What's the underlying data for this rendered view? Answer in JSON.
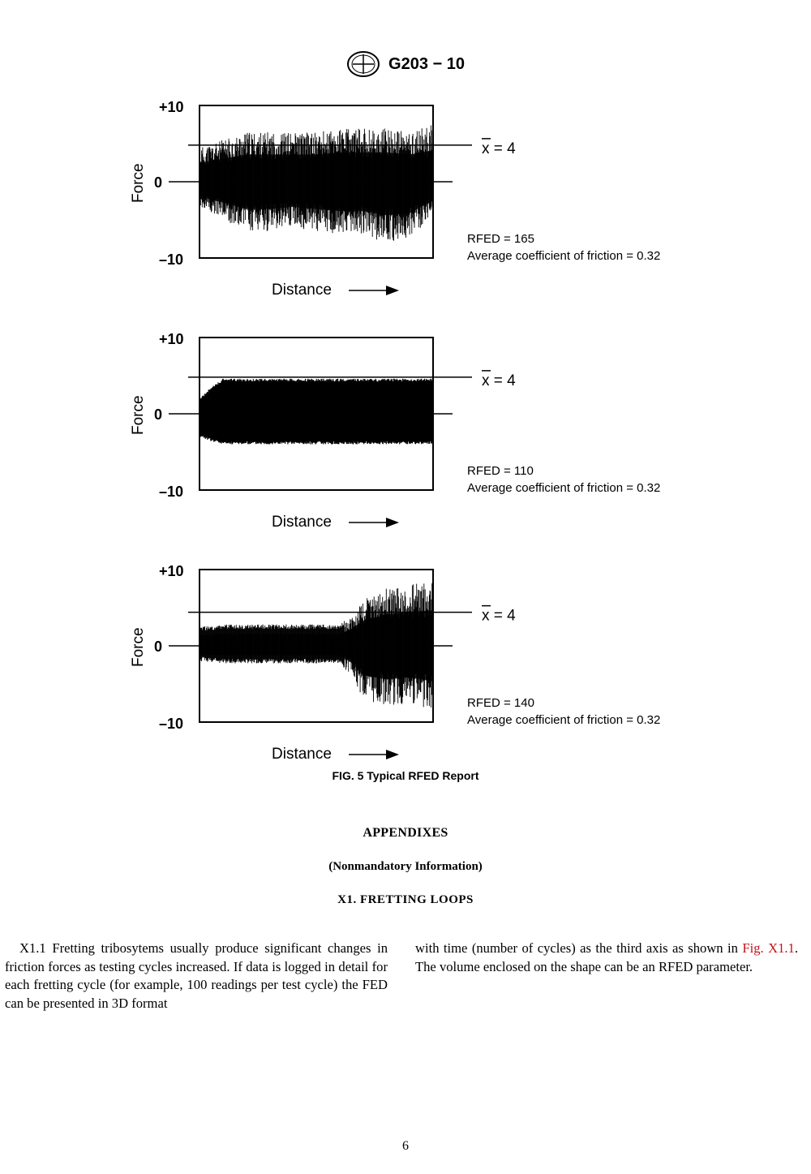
{
  "header": {
    "logo_text": "ASTM",
    "designation": "G203 − 10"
  },
  "figure": {
    "caption": "FIG. 5 Typical RFED Report"
  },
  "chart_data": [
    {
      "type": "area",
      "ylabel": "Force",
      "xlabel": "Distance",
      "ylim": [
        -10,
        10
      ],
      "yticks": [
        "+10",
        "0",
        "–10"
      ],
      "mean_label": "x = 4",
      "mean_value": 4.8,
      "rfed_label": "RFED = 165",
      "friction_label": "Average coefficient of friction = 0.32",
      "envelope": {
        "x": [
          0,
          0.1,
          0.2,
          0.3,
          0.4,
          0.5,
          0.6,
          0.7,
          0.8,
          0.9,
          1.0
        ],
        "upper": [
          4.5,
          5.5,
          6.5,
          6.5,
          6.5,
          6.5,
          7.0,
          7.0,
          7.0,
          6.5,
          7.5
        ],
        "lower": [
          -3.5,
          -5.0,
          -6.5,
          -6.5,
          -6.0,
          -6.5,
          -7.0,
          -7.0,
          -8.0,
          -7.5,
          -4.5
        ]
      },
      "style": "spiky"
    },
    {
      "type": "area",
      "ylabel": "Force",
      "xlabel": "Distance",
      "ylim": [
        -10,
        10
      ],
      "yticks": [
        "+10",
        "0",
        "–10"
      ],
      "mean_label": "x = 4",
      "mean_value": 4.8,
      "rfed_label": "RFED = 110",
      "friction_label": "Average coefficient of friction = 0.32",
      "envelope": {
        "x": [
          0,
          0.05,
          0.1,
          0.2,
          0.4,
          0.6,
          0.8,
          1.0
        ],
        "upper": [
          2.0,
          3.5,
          4.6,
          4.6,
          4.6,
          4.6,
          4.6,
          4.6
        ],
        "lower": [
          -3.0,
          -3.6,
          -4.0,
          -4.0,
          -4.0,
          -4.0,
          -4.0,
          -4.0
        ]
      },
      "style": "dense"
    },
    {
      "type": "area",
      "ylabel": "Force",
      "xlabel": "Distance",
      "ylim": [
        -10,
        10
      ],
      "yticks": [
        "+10",
        "0",
        "–10"
      ],
      "mean_label": "x = 4",
      "mean_value": 4.4,
      "rfed_label": "RFED = 140",
      "friction_label": "Average coefficient of friction = 0.32",
      "envelope": {
        "x": [
          0,
          0.1,
          0.2,
          0.3,
          0.4,
          0.5,
          0.6,
          0.65,
          0.7,
          0.8,
          0.9,
          1.0
        ],
        "upper": [
          2.5,
          2.8,
          2.8,
          2.8,
          2.8,
          2.8,
          2.8,
          4.0,
          6.0,
          7.5,
          8.0,
          8.5
        ],
        "lower": [
          -2.0,
          -2.3,
          -2.3,
          -2.3,
          -2.3,
          -2.3,
          -2.3,
          -4.0,
          -7.0,
          -8.0,
          -7.5,
          -8.5
        ]
      },
      "style": "mixed"
    }
  ],
  "appendixes": {
    "title": "APPENDIXES",
    "subtitle": "(Nonmandatory Information)",
    "section_title": "X1.  FRETTING LOOPS"
  },
  "body": {
    "left_column": "X1.1 Fretting tribosytems usually produce significant changes in friction forces as testing cycles increased. If data is logged in detail for each fretting cycle (for example, 100 readings per test cycle) the FED can be presented in 3D format",
    "right_start": "with time (number of cycles) as the third axis as shown in",
    "right_link": "Fig. X1.1",
    "right_end": ". The volume enclosed on the shape can be an RFED parameter."
  },
  "page": {
    "number": "6"
  },
  "colors": {
    "link": "#c0131a",
    "ink": "#000000"
  }
}
